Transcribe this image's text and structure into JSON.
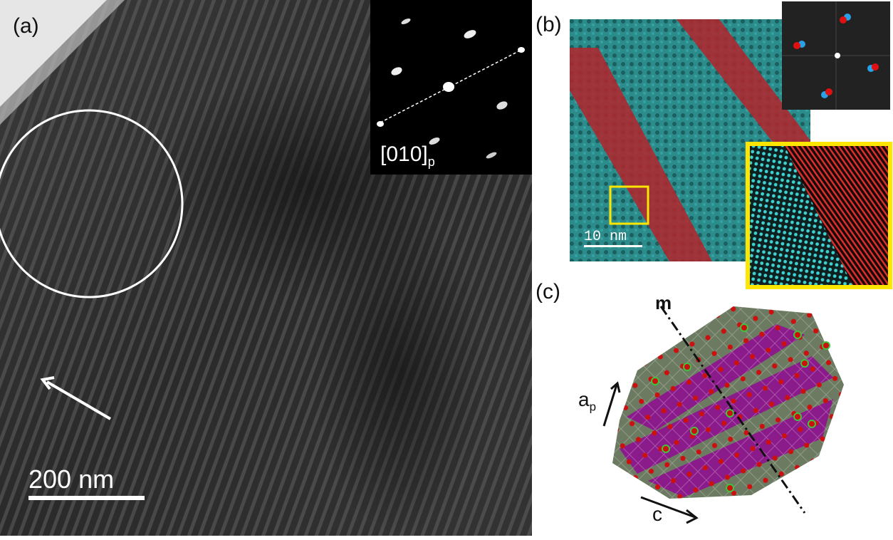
{
  "panel_a": {
    "label": "(a)",
    "scalebar": "200 nm",
    "inset_zone_axis": "[010]",
    "inset_zone_axis_sub": "p"
  },
  "panel_b": {
    "label": "(b)",
    "scalebar": "10 nm",
    "colors": {
      "phase_1": "#2fa6a6",
      "phase_2": "#c0262a",
      "highlight_box": "#ffe600"
    }
  },
  "panel_c": {
    "label": "(c)",
    "mirror_label": "m",
    "axis_a_label": "a",
    "axis_a_sub": "p",
    "axis_c_label": "c",
    "colors": {
      "octahedra_purple": "#8b1a8b",
      "octahedra_green": "#5e7a55",
      "oxygen": "#cc1010",
      "cation": "#3ec43e"
    }
  }
}
